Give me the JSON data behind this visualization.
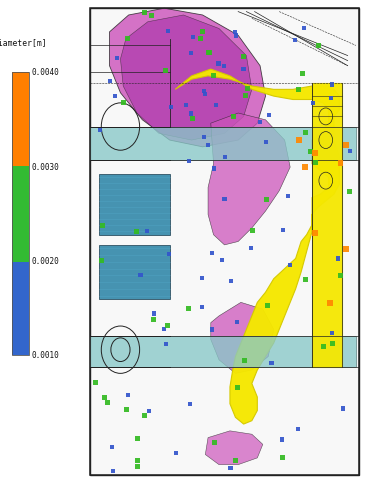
{
  "bg_color": "#ffffff",
  "panel_bg": "#f2f2f2",
  "colorbar_title": "Diameter[m]",
  "colorbar_labels": [
    "0.0040",
    "0.0030",
    "0.0020",
    "0.0010"
  ],
  "colorbar_colors_top_to_bot": [
    "#ff7f00",
    "#33bb33",
    "#3366cc"
  ],
  "yellow": "#f5e800",
  "yellow_edge": "#d4c800",
  "purple": "#cc55bb",
  "purple_dark": "#aa33aa",
  "teal": "#88c8c8",
  "teal_dark": "#3388aa",
  "dark_bg": "#336677",
  "line_color": "#222222",
  "p_blue": "#3355cc",
  "p_green": "#33bb22",
  "p_orange": "#ff8800",
  "fig_w": 3.65,
  "fig_h": 4.83,
  "dpi": 100
}
